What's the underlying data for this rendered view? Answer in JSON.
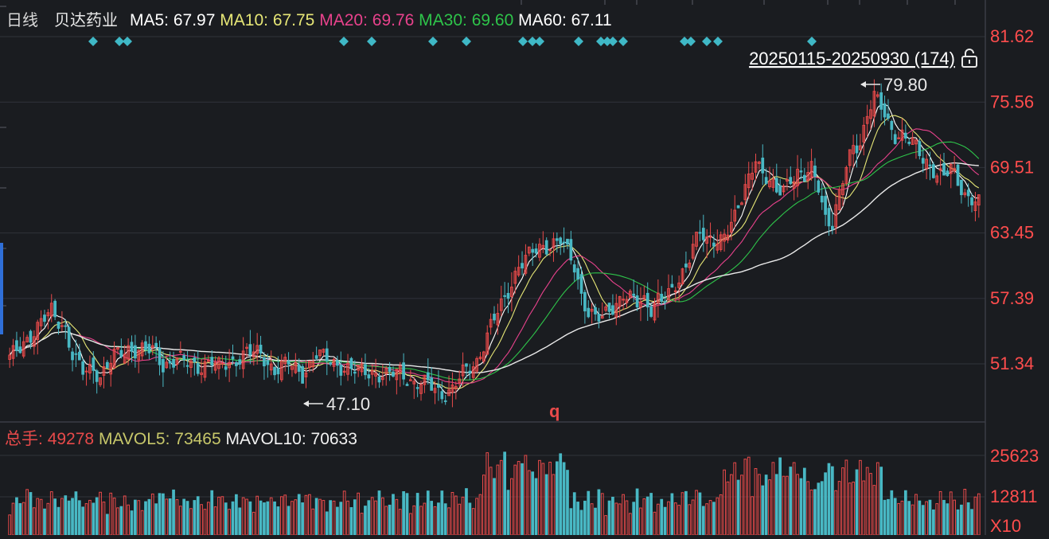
{
  "header": {
    "period_label": "日线",
    "stock_name": "贝达药业",
    "ma_items": [
      {
        "key": "MA5",
        "label": "MA5:",
        "value": "67.97",
        "color": "#ffffff"
      },
      {
        "key": "MA10",
        "label": "MA10:",
        "value": "67.75",
        "color": "#e6e676"
      },
      {
        "key": "MA20",
        "label": "MA20:",
        "value": "69.76",
        "color": "#e8428c"
      },
      {
        "key": "MA30",
        "label": "MA30:",
        "value": "69.60",
        "color": "#2ec44a"
      },
      {
        "key": "MA60",
        "label": "MA60:",
        "value": "67.11",
        "color": "#ffffff"
      }
    ]
  },
  "range_label": "20250115-20250930 (174)",
  "markers": {
    "high": "79.80",
    "low": "47.10",
    "q_label": "q"
  },
  "volume_header": {
    "vol_label": "总手:",
    "vol_value": "49278",
    "mavol5_label": "MAVOL5:",
    "mavol5_value": "73465",
    "mavol10_label": "MAVOL10:",
    "mavol10_value": "70633"
  },
  "colors": {
    "background": "#1a1c20",
    "up": "#e84a4a",
    "down": "#49b8c4",
    "price_axis": "#ff4d4d",
    "grid": "#30333a",
    "diamond": "#3fb8c6"
  },
  "chart_data": {
    "type": "candlestick",
    "date_range": "20250115-20250930",
    "count": 174,
    "y_ticks": [
      81.62,
      75.56,
      69.51,
      63.45,
      57.39,
      51.34
    ],
    "y_tick_labels": [
      "81.62",
      "75.56",
      "69.51",
      "63.45",
      "57.39",
      "51.34"
    ],
    "volume_ticks": [
      "25623",
      "12811",
      "X10"
    ],
    "high_value": 79.8,
    "low_value": 47.1,
    "ma_latest": {
      "MA5": 67.97,
      "MA10": 67.75,
      "MA20": 69.76,
      "MA30": 69.6,
      "MA60": 67.11
    },
    "volume_latest": 49278,
    "mavol5_latest": 73465,
    "mavol10_latest": 70633,
    "close_keypoints": [
      [
        0,
        51.8
      ],
      [
        4,
        53.4
      ],
      [
        8,
        54.6
      ],
      [
        12,
        56.3
      ],
      [
        16,
        54.6
      ],
      [
        18,
        52
      ],
      [
        21,
        50.6
      ],
      [
        24,
        51
      ],
      [
        26,
        50.2
      ],
      [
        30,
        52
      ],
      [
        34,
        52.8
      ],
      [
        38,
        52.6
      ],
      [
        42,
        52.4
      ],
      [
        44,
        51.2
      ],
      [
        48,
        51.8
      ],
      [
        50,
        51.5
      ],
      [
        54,
        51.1
      ],
      [
        58,
        51.6
      ],
      [
        60,
        51
      ],
      [
        64,
        51.6
      ],
      [
        68,
        52.4
      ],
      [
        72,
        52.2
      ],
      [
        76,
        50.8
      ],
      [
        80,
        51.4
      ],
      [
        84,
        50.4
      ],
      [
        88,
        52.2
      ],
      [
        92,
        51.6
      ],
      [
        96,
        51
      ],
      [
        100,
        50.6
      ],
      [
        104,
        50.6
      ],
      [
        108,
        50.2
      ],
      [
        112,
        50.6
      ],
      [
        116,
        49.6
      ],
      [
        120,
        49.4
      ],
      [
        124,
        48.6
      ],
      [
        127,
        49
      ],
      [
        130,
        50.4
      ],
      [
        134,
        51.6
      ],
      [
        138,
        54.8
      ],
      [
        142,
        57.3
      ],
      [
        146,
        60.5
      ],
      [
        150,
        61.6
      ],
      [
        152,
        62
      ],
      [
        156,
        62.6
      ],
      [
        158,
        62.8
      ],
      [
        162,
        60.3
      ],
      [
        164,
        57.8
      ],
      [
        166,
        56.2
      ],
      [
        168,
        55.6
      ],
      [
        170,
        55.4
      ],
      [
        172,
        56.3
      ],
      [
        174,
        57
      ],
      [
        176,
        57.9
      ],
      [
        178,
        57.4
      ],
      [
        180,
        56.8
      ],
      [
        182,
        57.1
      ],
      [
        184,
        56.6
      ],
      [
        186,
        57.6
      ],
      [
        188,
        57.3
      ],
      [
        190,
        57.8
      ],
      [
        192,
        59
      ],
      [
        194,
        60.6
      ],
      [
        196,
        62.5
      ],
      [
        198,
        63.5
      ],
      [
        200,
        62.4
      ],
      [
        202,
        62.7
      ],
      [
        204,
        63.1
      ],
      [
        206,
        64
      ],
      [
        208,
        64.8
      ],
      [
        210,
        66.4
      ],
      [
        212,
        68.5
      ],
      [
        214,
        70.7
      ],
      [
        216,
        69
      ],
      [
        218,
        68.1
      ],
      [
        220,
        67
      ],
      [
        222,
        67.6
      ],
      [
        224,
        68.7
      ],
      [
        226,
        69.1
      ],
      [
        228,
        68.5
      ],
      [
        230,
        69.2
      ],
      [
        232,
        67.8
      ],
      [
        234,
        65
      ],
      [
        236,
        64.4
      ],
      [
        238,
        66.9
      ],
      [
        240,
        69.4
      ],
      [
        242,
        71.5
      ],
      [
        244,
        71.8
      ],
      [
        246,
        74.6
      ],
      [
        248,
        76
      ],
      [
        250,
        75
      ],
      [
        252,
        73.6
      ],
      [
        254,
        72.6
      ],
      [
        256,
        72.6
      ],
      [
        258,
        72
      ],
      [
        260,
        71.3
      ],
      [
        262,
        70.3
      ],
      [
        264,
        69.8
      ],
      [
        266,
        69
      ],
      [
        268,
        68.6
      ],
      [
        270,
        69.3
      ],
      [
        272,
        68.2
      ],
      [
        274,
        67.1
      ],
      [
        276,
        66.7
      ],
      [
        278,
        66.2
      ]
    ]
  }
}
